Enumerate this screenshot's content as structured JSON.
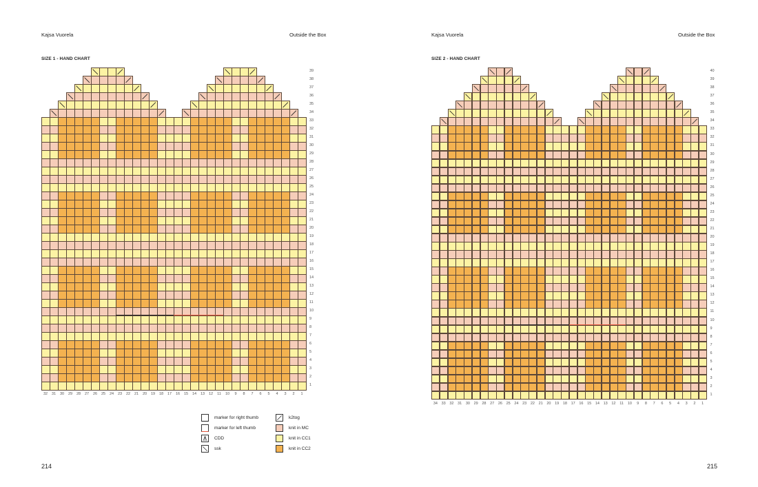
{
  "left_page": {
    "author": "Kajsa Vuorela",
    "book": "Outside the Box",
    "chart_title": "SIZE 1 - HAND CHART",
    "page_number": "214",
    "columns": 32,
    "rows": 39,
    "colored_rows": 33,
    "row_numbers": [
      "1",
      "2",
      "3",
      "4",
      "5",
      "6",
      "7",
      "8",
      "9",
      "10",
      "11",
      "12",
      "13",
      "14",
      "15",
      "16",
      "17",
      "18",
      "19",
      "20",
      "21",
      "22",
      "23",
      "24",
      "25",
      "26",
      "27",
      "28",
      "29",
      "30",
      "31",
      "32",
      "33",
      "34",
      "35",
      "36",
      "37",
      "38",
      "39"
    ],
    "col_numbers": [
      "32",
      "31",
      "30",
      "29",
      "28",
      "27",
      "26",
      "25",
      "24",
      "23",
      "22",
      "21",
      "20",
      "19",
      "18",
      "17",
      "16",
      "15",
      "14",
      "13",
      "12",
      "11",
      "10",
      "9",
      "8",
      "7",
      "6",
      "5",
      "4",
      "3",
      "2",
      "1"
    ]
  },
  "right_page": {
    "author": "Kajsa Vuorela",
    "book": "Outside the Box",
    "chart_title": "SIZE 2 - HAND CHART",
    "page_number": "215",
    "columns": 34,
    "rows": 40,
    "colored_rows": 33,
    "row_numbers": [
      "1",
      "2",
      "3",
      "4",
      "5",
      "6",
      "7",
      "8",
      "9",
      "10",
      "11",
      "12",
      "13",
      "14",
      "15",
      "16",
      "17",
      "18",
      "19",
      "20",
      "21",
      "22",
      "23",
      "24",
      "25",
      "26",
      "27",
      "28",
      "29",
      "30",
      "31",
      "32",
      "33",
      "34",
      "35",
      "36",
      "37",
      "38",
      "39",
      "40"
    ],
    "col_numbers": [
      "34",
      "33",
      "32",
      "31",
      "30",
      "29",
      "28",
      "27",
      "26",
      "25",
      "24",
      "23",
      "22",
      "21",
      "20",
      "19",
      "18",
      "17",
      "16",
      "15",
      "14",
      "13",
      "12",
      "11",
      "10",
      "9",
      "8",
      "7",
      "6",
      "5",
      "4",
      "3",
      "2",
      "1"
    ]
  },
  "legend": {
    "right_thumb": "marker for right thumb",
    "left_thumb": "marker for left thumb",
    "cdd": "CDD",
    "ssk": "ssk",
    "k2tog": "k2tog",
    "mc": "knit in MC",
    "cc1": "knit in CC1",
    "cc2": "knit in CC2"
  },
  "colors": {
    "mc": "#f6cdb9",
    "cc1": "#fcf3a4",
    "cc2": "#f4b250",
    "right_thumb_marker": "#222222",
    "left_thumb_marker": "#e8553a",
    "grid_line": "#5a4638"
  }
}
